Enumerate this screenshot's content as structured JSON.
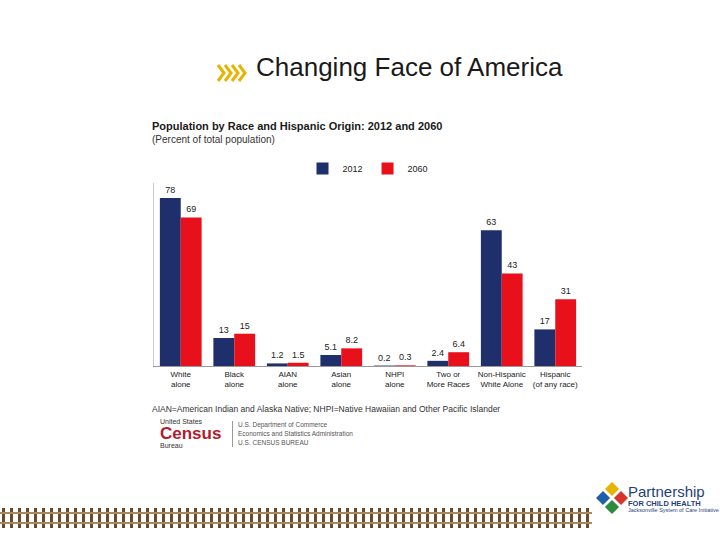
{
  "slide": {
    "title": "Changing Face of America",
    "footnote": "AIAN=American Indian and Alaska Native; NHPI=Native Hawaiian and Other Pacific Islander",
    "census_logo": [
      "United States",
      "Census",
      "Bureau"
    ],
    "agency": [
      "U.S. Department of Commerce",
      "Economics and Statistics Administration",
      "U.S. CENSUS BUREAU"
    ],
    "partner_logo": [
      "Partnership",
      "FOR CHILD HEALTH",
      "Jacksonville System of Care Initiative"
    ]
  },
  "chart_data": {
    "type": "bar",
    "title": "Population by Race and Hispanic Origin: 2012 and 2060",
    "subtitle": "(Percent of total population)",
    "categories": [
      "White alone",
      "Black alone",
      "AIAN alone",
      "Asian alone",
      "NHPI alone",
      "Two or More Races",
      "Non-Hispanic White Alone",
      "Hispanic (of any race)"
    ],
    "series": [
      {
        "name": "2012",
        "color": "#1f2f6b",
        "values": [
          78,
          13,
          1.2,
          5.1,
          0.2,
          2.4,
          63,
          17
        ]
      },
      {
        "name": "2060",
        "color": "#e8101a",
        "values": [
          69,
          15,
          1.5,
          8.2,
          0.3,
          6.4,
          43,
          31
        ]
      }
    ],
    "ylim": [
      0,
      85
    ],
    "tick_labels": "x",
    "data_labels": true,
    "legend": "top",
    "grid": false
  }
}
